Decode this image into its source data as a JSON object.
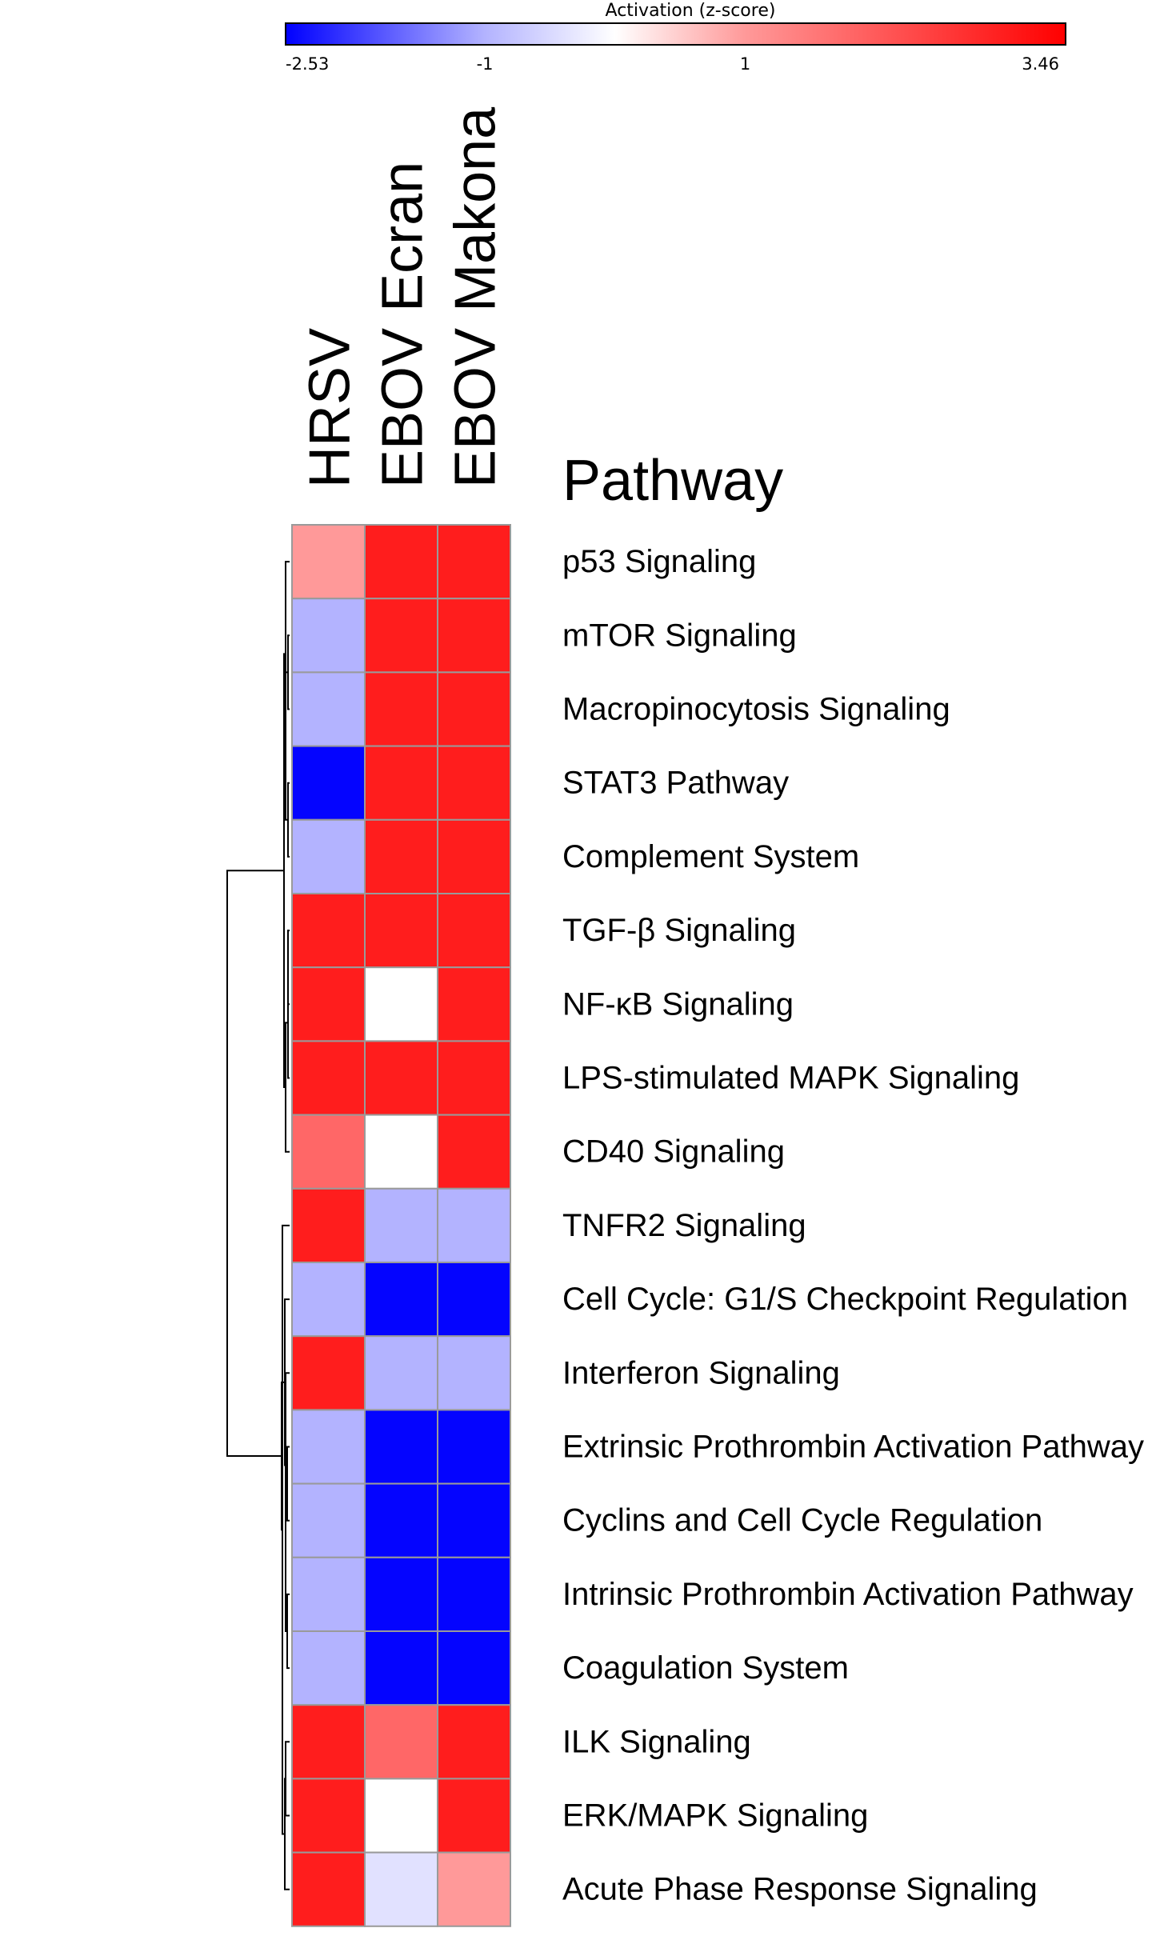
{
  "chart_data": {
    "type": "heatmap",
    "colorbar": {
      "title": "Activation (z-score)",
      "min": -2.53,
      "max": 3.46,
      "ticks": [
        {
          "value": -2.53,
          "label": "-2.53"
        },
        {
          "value": -1,
          "label": "-1"
        },
        {
          "value": 1,
          "label": "1"
        },
        {
          "value": 3.46,
          "label": "3.46"
        }
      ],
      "stops": [
        {
          "value": -2.53,
          "color": "#0000ff"
        },
        {
          "value": -1,
          "color": "#b3b3ff"
        },
        {
          "value": 0,
          "color": "#ffffff"
        },
        {
          "value": 1,
          "color": "#ff9999"
        },
        {
          "value": 3.46,
          "color": "#ff0000"
        }
      ]
    },
    "columns": [
      "HRSV",
      "EBOV Ecran",
      "EBOV Makona"
    ],
    "row_header": "Pathway",
    "rows": [
      {
        "label": "p53 Signaling",
        "values": [
          1.0,
          3.0,
          3.0
        ]
      },
      {
        "label": "mTOR Signaling",
        "values": [
          -1.0,
          3.0,
          3.0
        ]
      },
      {
        "label": "Macropinocytosis Signaling",
        "values": [
          -1.0,
          3.0,
          3.0
        ]
      },
      {
        "label": "STAT3 Pathway",
        "values": [
          -2.5,
          3.0,
          3.0
        ]
      },
      {
        "label": "Complement System",
        "values": [
          -1.0,
          3.0,
          3.0
        ]
      },
      {
        "label": "TGF-β Signaling",
        "values": [
          3.0,
          3.0,
          3.0
        ]
      },
      {
        "label": "NF-κB Signaling",
        "values": [
          3.0,
          0.0,
          3.0
        ]
      },
      {
        "label": "LPS-stimulated MAPK Signaling",
        "values": [
          3.0,
          3.0,
          3.0
        ]
      },
      {
        "label": "CD40 Signaling",
        "values": [
          1.8,
          0.0,
          3.0
        ]
      },
      {
        "label": "TNFR2 Signaling",
        "values": [
          3.0,
          -1.0,
          -1.0
        ]
      },
      {
        "label": "Cell Cycle: G1/S Checkpoint Regulation",
        "values": [
          -1.0,
          -2.5,
          -2.5
        ]
      },
      {
        "label": "Interferon Signaling",
        "values": [
          3.0,
          -1.0,
          -1.0
        ]
      },
      {
        "label": "Extrinsic Prothrombin Activation Pathway",
        "values": [
          -1.0,
          -2.5,
          -2.5
        ]
      },
      {
        "label": "Cyclins and Cell Cycle Regulation",
        "values": [
          -1.0,
          -2.5,
          -2.5
        ]
      },
      {
        "label": "Intrinsic Prothrombin Activation Pathway",
        "values": [
          -1.0,
          -2.5,
          -2.5
        ]
      },
      {
        "label": "Coagulation System",
        "values": [
          -1.0,
          -2.5,
          -2.5
        ]
      },
      {
        "label": "ILK Signaling",
        "values": [
          3.0,
          1.8,
          3.0
        ]
      },
      {
        "label": "ERK/MAPK Signaling",
        "values": [
          3.0,
          0.0,
          3.0
        ]
      },
      {
        "label": "Acute Phase Response Signaling",
        "values": [
          3.0,
          -0.4,
          1.0
        ]
      }
    ],
    "row_dendrogram": {
      "leaves": 19,
      "merges": [
        [
          1,
          2
        ],
        [
          3,
          4
        ],
        [
          -1,
          -2
        ],
        [
          0,
          -3
        ],
        [
          5,
          6
        ],
        [
          -5,
          7
        ],
        [
          -6,
          8
        ],
        [
          -4,
          -7
        ],
        [
          12,
          13
        ],
        [
          14,
          15
        ],
        [
          -9,
          -10
        ],
        [
          11,
          -11
        ],
        [
          10,
          -12
        ],
        [
          16,
          17
        ],
        [
          -14,
          18
        ],
        [
          9,
          -15
        ],
        [
          -13,
          -16
        ],
        [
          -8,
          -17
        ]
      ]
    }
  }
}
